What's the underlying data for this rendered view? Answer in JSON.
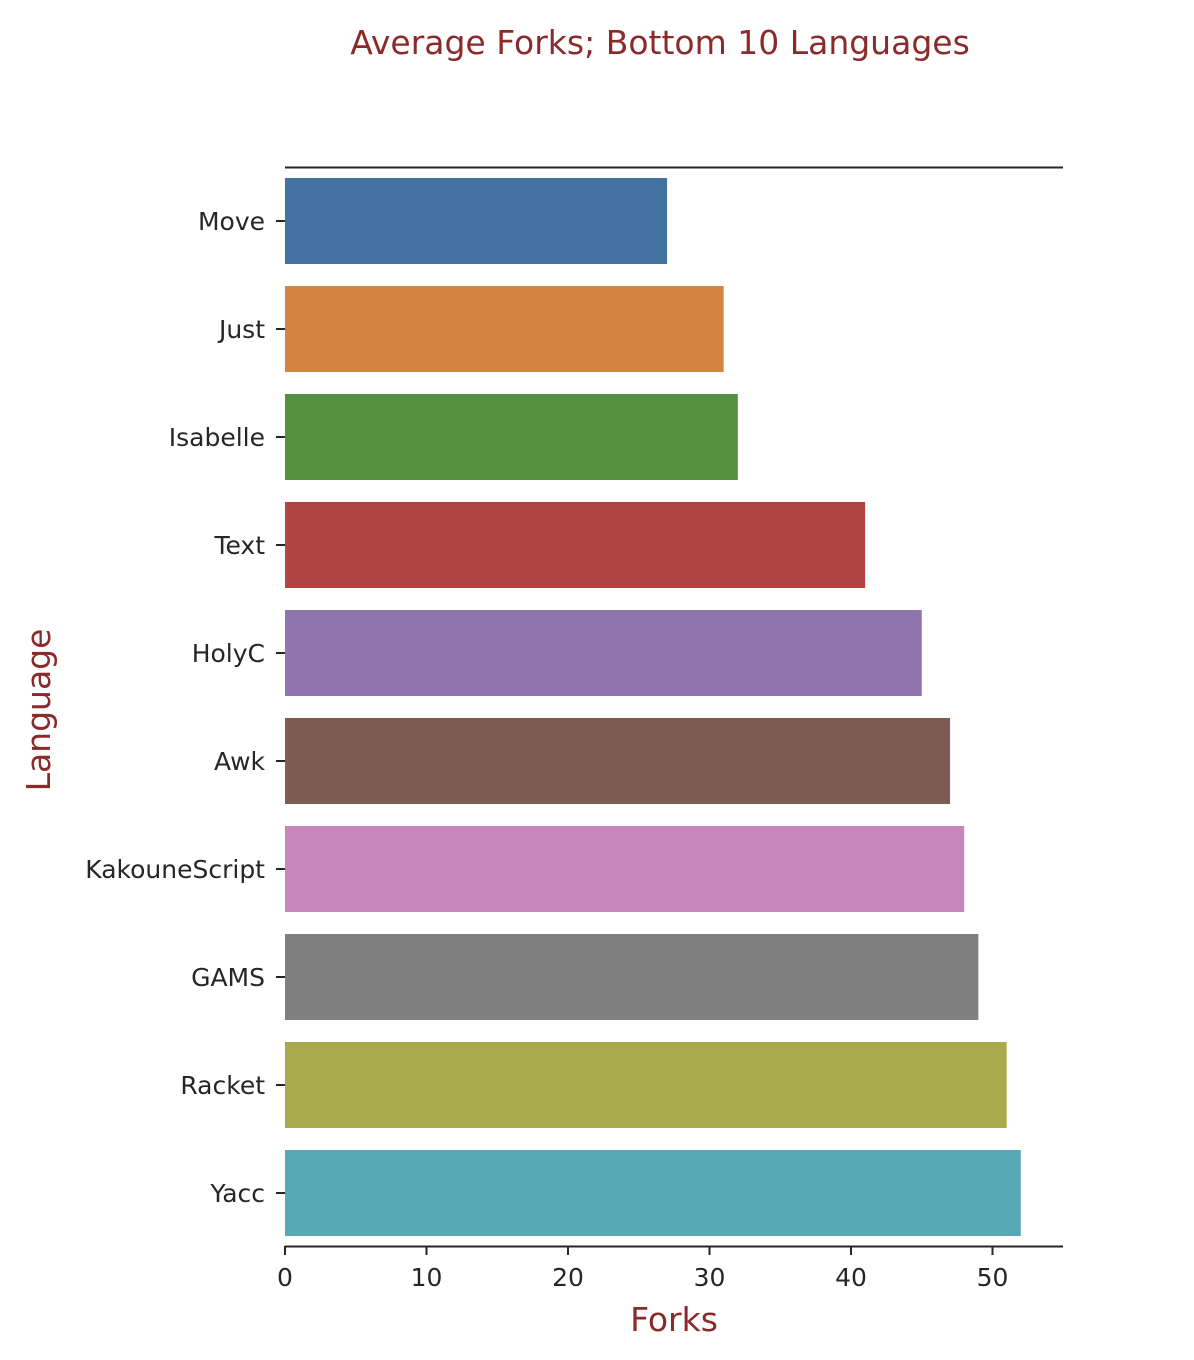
{
  "chart_data": {
    "type": "bar",
    "orientation": "horizontal",
    "title": "Average Forks; Bottom 10 Languages",
    "xlabel": "Forks",
    "ylabel": "Language",
    "categories": [
      "Move",
      "Just",
      "Isabelle",
      "Text",
      "HolyC",
      "Awk",
      "KakouneScript",
      "GAMS",
      "Racket",
      "Yacc"
    ],
    "values": [
      27,
      31,
      32,
      41,
      45,
      47,
      48,
      49,
      51,
      52
    ],
    "xlim": [
      0,
      55
    ],
    "xticks": [
      0,
      10,
      20,
      30,
      40,
      50
    ],
    "grid": false,
    "legend": "none",
    "colors": {
      "title": "#8b2a2a",
      "axis_label": "#8b2a2a",
      "bars": [
        "#4472a0",
        "#d3843f",
        "#55913f",
        "#b04542",
        "#8f75ad",
        "#7d5c51",
        "#c887bc",
        "#7f7f7f",
        "#a9aa4b",
        "#58a9b6"
      ]
    }
  }
}
